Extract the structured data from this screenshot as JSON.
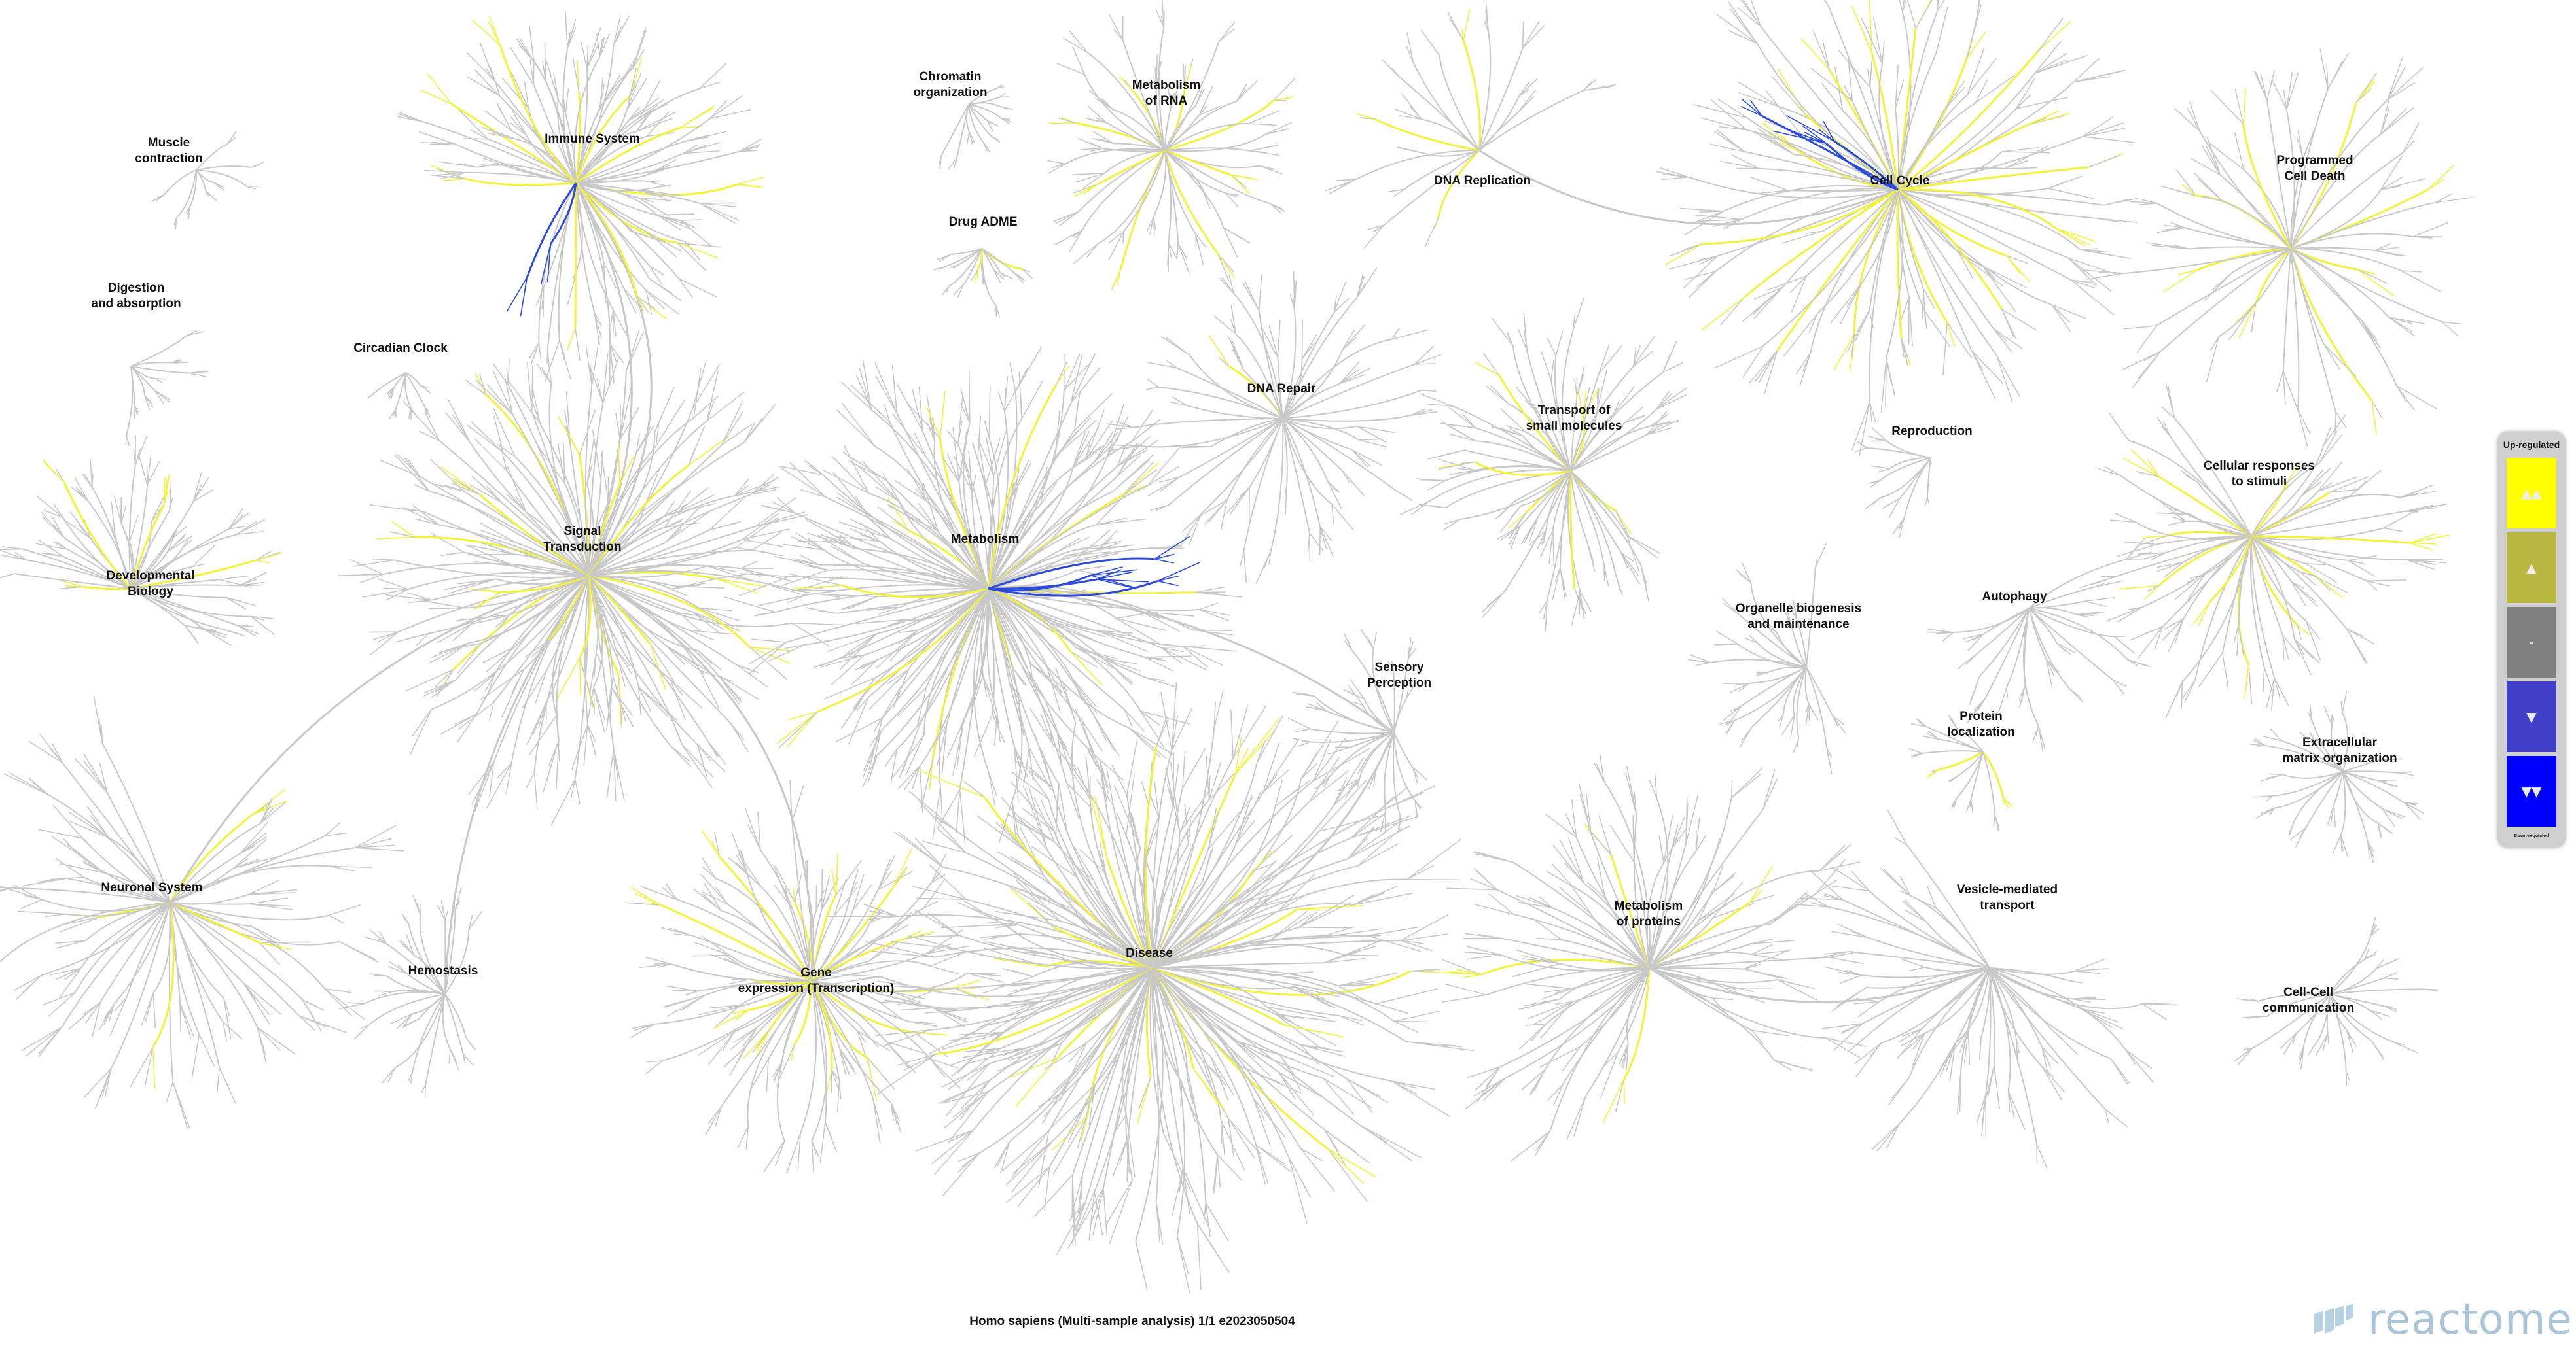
{
  "pathways": [
    {
      "id": "muscle",
      "lines": [
        "Muscle",
        "contraction"
      ]
    },
    {
      "id": "immune",
      "lines": [
        "Immune System"
      ]
    },
    {
      "id": "chromatin",
      "lines": [
        "Chromatin",
        "organization"
      ]
    },
    {
      "id": "rna",
      "lines": [
        "Metabolism",
        "of RNA"
      ]
    },
    {
      "id": "dnarep",
      "lines": [
        "DNA Replication"
      ]
    },
    {
      "id": "cellcycle",
      "lines": [
        "Cell Cycle"
      ]
    },
    {
      "id": "pcd",
      "lines": [
        "Programmed",
        "Cell Death"
      ]
    },
    {
      "id": "digestion",
      "lines": [
        "Digestion",
        "and absorption"
      ]
    },
    {
      "id": "circadian",
      "lines": [
        "Circadian Clock"
      ]
    },
    {
      "id": "drug",
      "lines": [
        "Drug ADME"
      ]
    },
    {
      "id": "dnarepair",
      "lines": [
        "DNA Repair"
      ]
    },
    {
      "id": "transport",
      "lines": [
        "Transport of",
        "small molecules"
      ]
    },
    {
      "id": "reproduction",
      "lines": [
        "Reproduction"
      ]
    },
    {
      "id": "cellresp",
      "lines": [
        "Cellular responses",
        "to stimuli"
      ]
    },
    {
      "id": "signal",
      "lines": [
        "Signal",
        "Transduction"
      ]
    },
    {
      "id": "metabolism",
      "lines": [
        "Metabolism"
      ]
    },
    {
      "id": "devbio",
      "lines": [
        "Developmental",
        "Biology"
      ]
    },
    {
      "id": "organelle",
      "lines": [
        "Organelle biogenesis",
        "and maintenance"
      ]
    },
    {
      "id": "autophagy",
      "lines": [
        "Autophagy"
      ]
    },
    {
      "id": "sensory",
      "lines": [
        "Sensory",
        "Perception"
      ]
    },
    {
      "id": "protloc",
      "lines": [
        "Protein",
        "localization"
      ]
    },
    {
      "id": "ecm",
      "lines": [
        "Extracellular",
        "matrix organization"
      ]
    },
    {
      "id": "neuronal",
      "lines": [
        "Neuronal System"
      ]
    },
    {
      "id": "hemostasis",
      "lines": [
        "Hemostasis"
      ]
    },
    {
      "id": "gene",
      "lines": [
        "Gene",
        "expression (Transcription)"
      ]
    },
    {
      "id": "disease",
      "lines": [
        "Disease"
      ]
    },
    {
      "id": "metprot",
      "lines": [
        "Metabolism",
        "of proteins"
      ]
    },
    {
      "id": "vesicle",
      "lines": [
        "Vesicle-mediated",
        "transport"
      ]
    },
    {
      "id": "cellcell",
      "lines": [
        "Cell-Cell",
        "communication"
      ]
    }
  ],
  "legend": {
    "title": "Up-regulated",
    "footer": "Down-regulated",
    "levels": [
      {
        "symbol": "▲▲",
        "color": "#ffff00"
      },
      {
        "symbol": "▲",
        "color": "#b8b840"
      },
      {
        "symbol": "-",
        "color": "#808080"
      },
      {
        "symbol": "▼",
        "color": "#4040c8"
      },
      {
        "symbol": "▼▼",
        "color": "#0000ff"
      }
    ]
  },
  "colors": {
    "branch": "#c8c8c8",
    "up": "#f2f23a",
    "down": "#2a4ad8"
  },
  "footer": {
    "text": "Homo sapiens (Multi-sample analysis) 1/1 e2023050504"
  },
  "logo": {
    "text": "reactome"
  }
}
